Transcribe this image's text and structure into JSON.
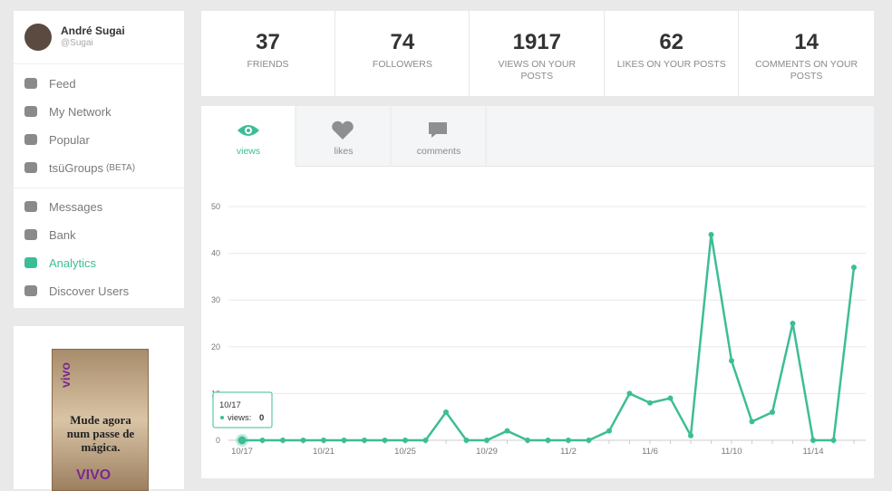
{
  "profile": {
    "name": "André Sugai",
    "handle": "@Sugai"
  },
  "nav": {
    "groups": [
      [
        {
          "label": "Feed"
        },
        {
          "label": "My Network"
        },
        {
          "label": "Popular"
        },
        {
          "label": "tsüGroups",
          "badge": "(BETA)"
        }
      ],
      [
        {
          "label": "Messages"
        },
        {
          "label": "Bank"
        },
        {
          "label": "Analytics",
          "active": true
        },
        {
          "label": "Discover Users"
        }
      ]
    ],
    "active_color": "#3dbd96"
  },
  "stats": [
    {
      "value": "37",
      "label": "FRIENDS"
    },
    {
      "value": "74",
      "label": "FOLLOWERS"
    },
    {
      "value": "1917",
      "label": "VIEWS ON YOUR POSTS"
    },
    {
      "value": "62",
      "label": "LIKES ON YOUR POSTS"
    },
    {
      "value": "14",
      "label": "COMMENTS ON YOUR POSTS"
    }
  ],
  "tabs": [
    {
      "label": "views",
      "active": true
    },
    {
      "label": "likes"
    },
    {
      "label": "comments"
    }
  ],
  "ad": {
    "brand": "vivo",
    "text": "Mude agora num passe de mágica.",
    "logo": "VIVO"
  },
  "tooltip": {
    "label": "views:"
  },
  "chart_data": {
    "type": "line",
    "categories": [
      "10/17",
      null,
      null,
      null,
      "10/21",
      null,
      null,
      null,
      "10/25",
      null,
      null,
      null,
      "10/29",
      null,
      null,
      null,
      "11/2",
      null,
      null,
      null,
      "11/6",
      null,
      null,
      null,
      "11/10",
      null,
      null,
      null,
      "11/14",
      null,
      null
    ],
    "values": [
      0,
      0,
      0,
      0,
      0,
      0,
      0,
      0,
      0,
      0,
      6,
      0,
      0,
      2,
      0,
      0,
      0,
      0,
      2,
      10,
      8,
      9,
      1,
      44,
      17,
      4,
      6,
      25,
      0,
      0,
      37
    ],
    "color": "#3dbd96",
    "ylim": [
      0,
      50
    ],
    "yticks": [
      0,
      10,
      20,
      30,
      40,
      50
    ],
    "grid": true
  }
}
